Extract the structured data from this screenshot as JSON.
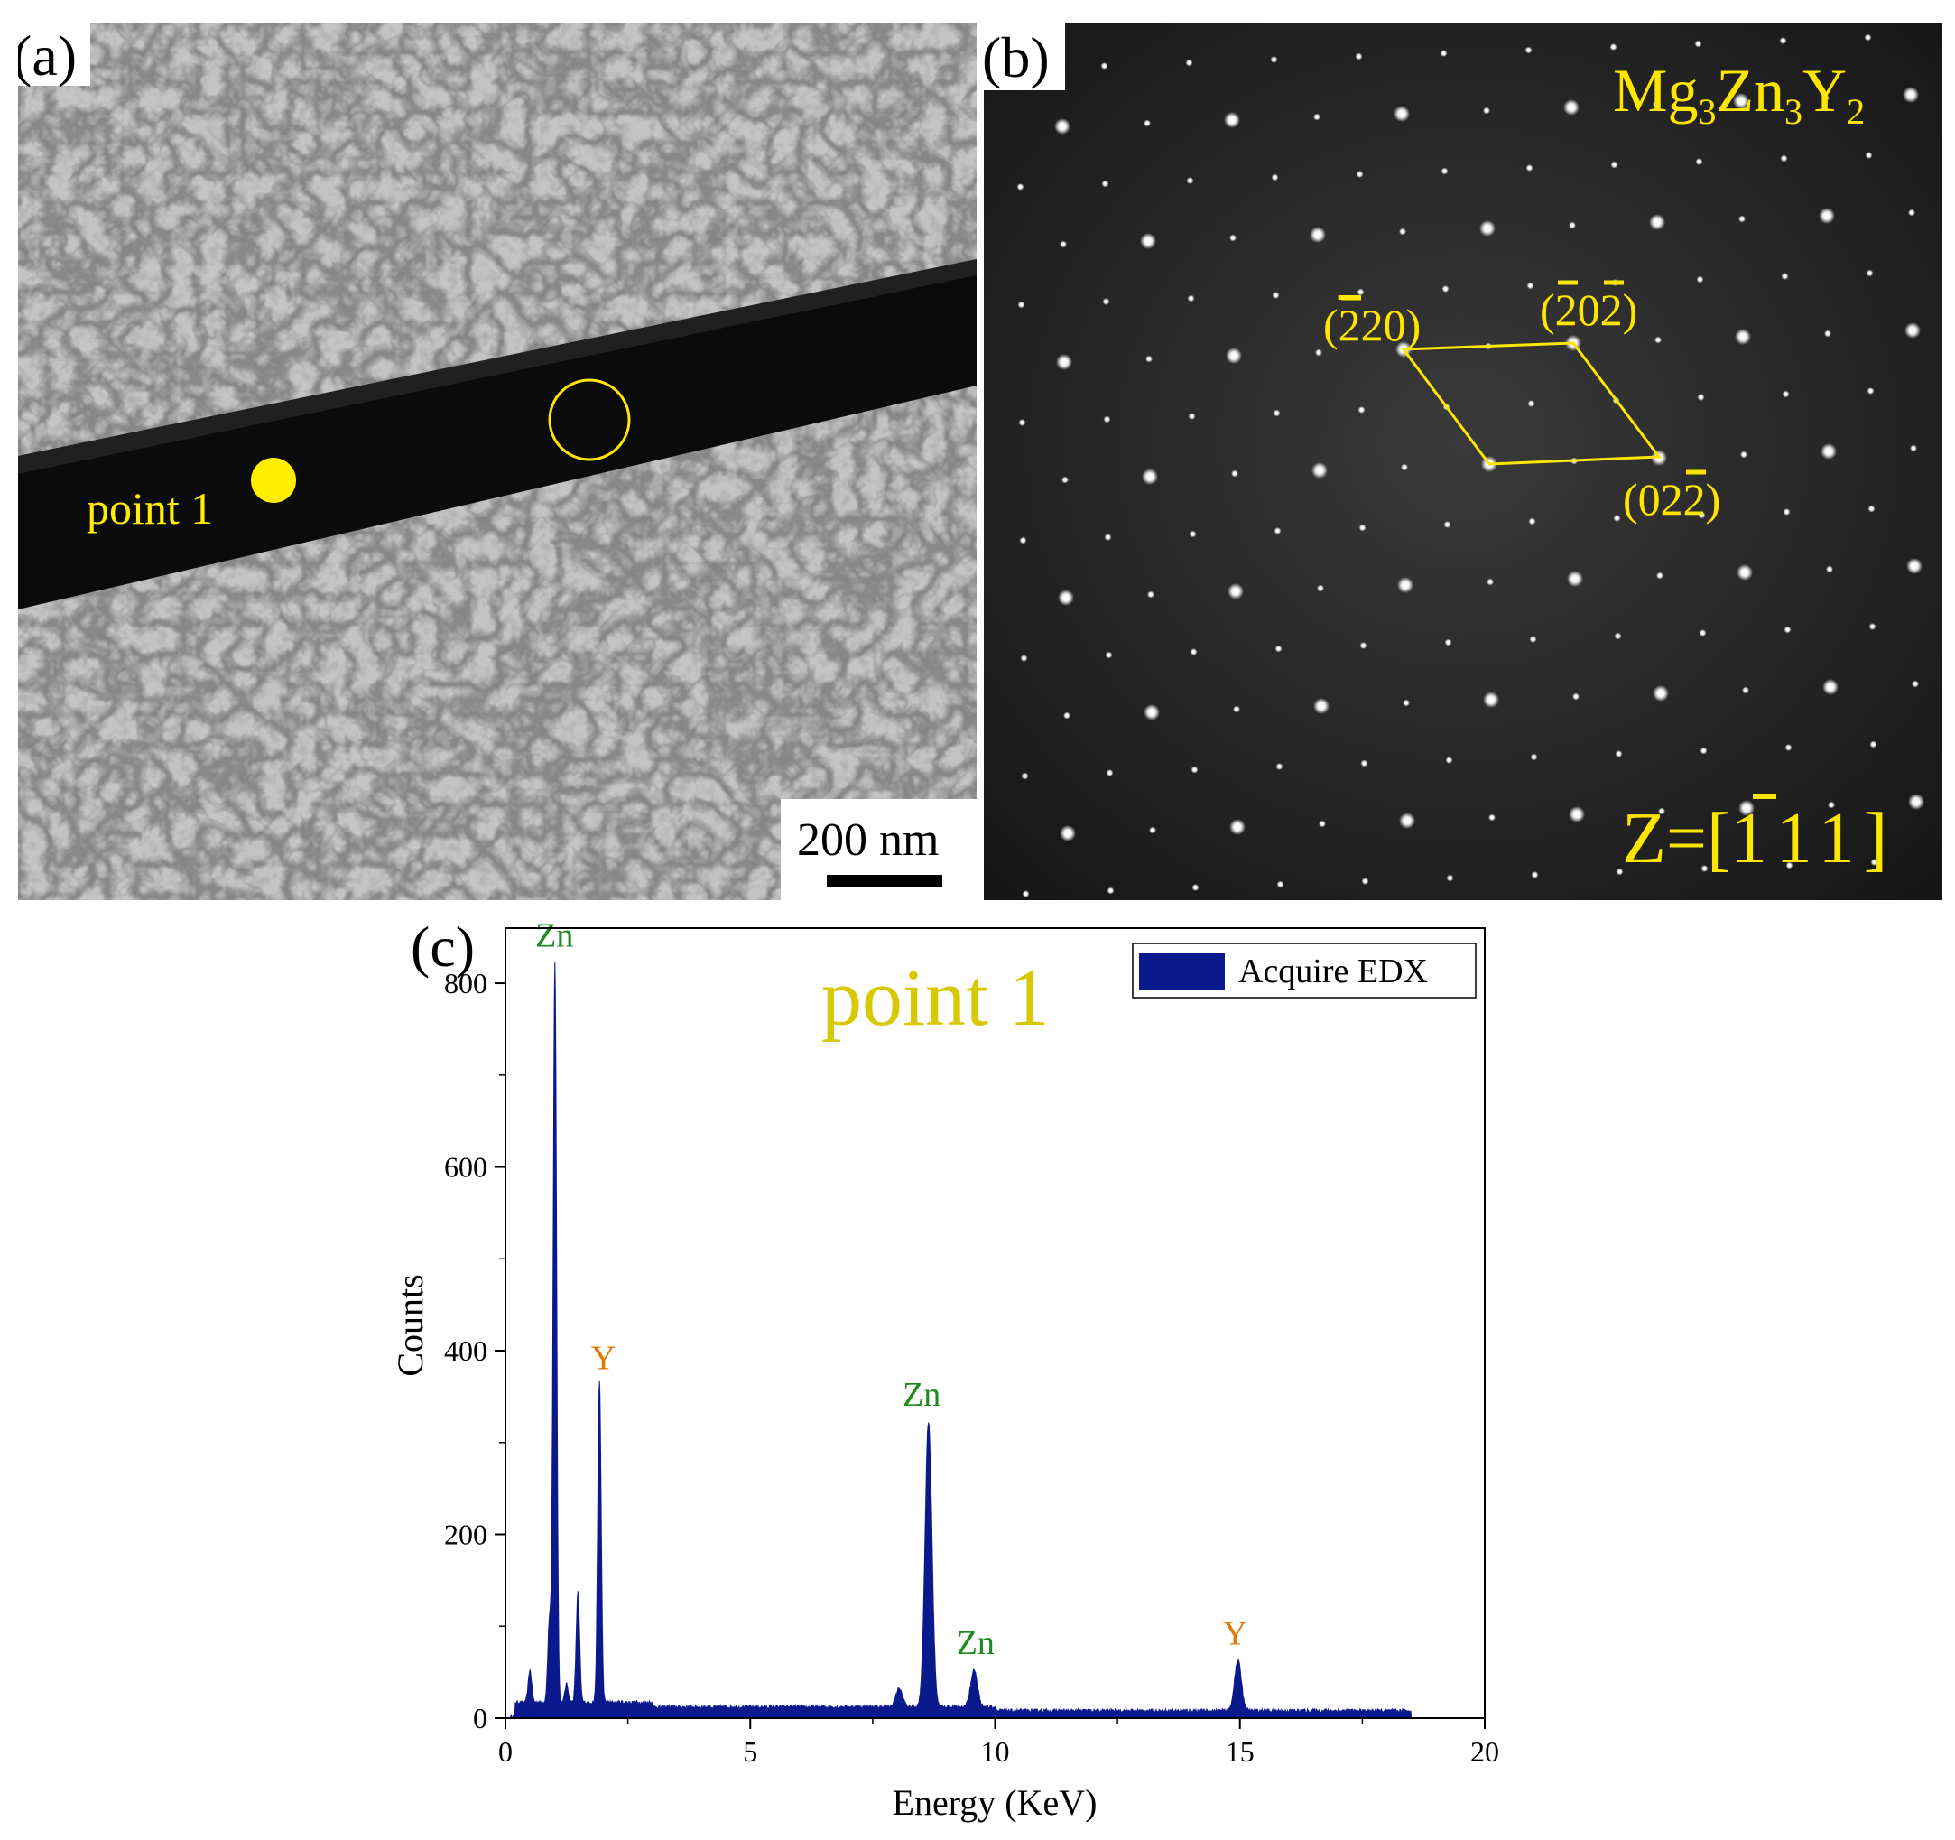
{
  "figure": {
    "panel_a": {
      "label": "(a)",
      "point_label": "point 1",
      "scale_bar_text": "200 nm"
    },
    "panel_b": {
      "label": "(b)",
      "phase": {
        "base_mg": "Mg",
        "sub_mg": "3",
        "base_zn": "Zn",
        "sub_zn": "3",
        "base_y": "Y",
        "sub_y": "2"
      },
      "zone_axis": {
        "prefix": "Z=[",
        "overbar_digit": "1",
        "rest": "11",
        "suffix": "]"
      },
      "spots": [
        {
          "bar1": "2",
          "plain1": "20",
          "open": "(",
          "close": ")"
        },
        {
          "bar1": "2",
          "plain1": "0",
          "bar2": "2",
          "open": "(",
          "close": ")"
        },
        {
          "plain0": "02",
          "bar2": "2",
          "open": "(",
          "close": ")"
        }
      ]
    },
    "panel_c": {
      "label": "(c)",
      "annotation_title": "point 1",
      "colors": {
        "series": "#0a1a8c",
        "zn": "#1f8a1f",
        "y": "#e07b00",
        "title": "#d8c800"
      }
    }
  },
  "chart_data": {
    "type": "area",
    "title": "",
    "xlabel": "Energy (KeV)",
    "ylabel": "Counts",
    "xlim": [
      0,
      20
    ],
    "ylim": [
      0,
      860
    ],
    "xticks": [
      0,
      5,
      10,
      15,
      20
    ],
    "yticks": [
      0,
      200,
      400,
      600,
      800
    ],
    "legend": {
      "position": "top-right",
      "entries": [
        "Acquire EDX"
      ]
    },
    "series": [
      {
        "name": "Acquire EDX",
        "baseline": 10,
        "peaks": [
          {
            "x": 0.5,
            "y": 45
          },
          {
            "x": 0.9,
            "y": 100
          },
          {
            "x": 1.01,
            "y": 815
          },
          {
            "x": 1.25,
            "y": 30
          },
          {
            "x": 1.48,
            "y": 130
          },
          {
            "x": 1.92,
            "y": 360
          },
          {
            "x": 8.04,
            "y": 30
          },
          {
            "x": 8.64,
            "y": 320
          },
          {
            "x": 9.57,
            "y": 50
          },
          {
            "x": 14.96,
            "y": 65
          },
          {
            "x": 16.74,
            "y": 10
          }
        ]
      }
    ],
    "annotations": [
      {
        "text": "Zn",
        "x": 1.0,
        "y": 840,
        "element": "zn"
      },
      {
        "text": "Y",
        "x": 2.0,
        "y": 380,
        "element": "y"
      },
      {
        "text": "Zn",
        "x": 8.5,
        "y": 340,
        "element": "zn"
      },
      {
        "text": "Zn",
        "x": 9.6,
        "y": 70,
        "element": "zn"
      },
      {
        "text": "Y",
        "x": 14.9,
        "y": 80,
        "element": "y"
      }
    ]
  }
}
